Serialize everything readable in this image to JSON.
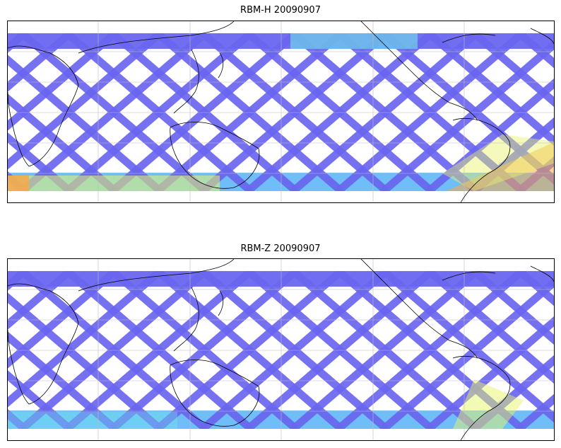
{
  "panels": [
    {
      "title": "RBM-H 20090907",
      "colormap": "jet",
      "base_swath_color": "#6a66f0",
      "hot_regions": [
        {
          "region": "southern-edge-indian-ocean",
          "color": "#f7b04a"
        },
        {
          "region": "south-atlantic-south-america",
          "color": "#f7b04a"
        },
        {
          "region": "northern-band-north-america",
          "color": "#8ef5e0"
        }
      ]
    },
    {
      "title": "RBM-Z 20090907",
      "colormap": "jet",
      "base_swath_color": "#6a66f0",
      "hot_regions": [
        {
          "region": "south-atlantic-south-america",
          "color": "#d7f57a"
        },
        {
          "region": "southern-edge",
          "color": "#6fd0f7"
        }
      ]
    }
  ],
  "colors": {
    "swath_low": "#6a66f0",
    "swath_mid": "#5fb7f7",
    "swath_cyan": "#6ff0e8",
    "swath_yellow": "#e8f56a",
    "swath_orange": "#f7a948",
    "coastline": "#000000",
    "gridline": "#bdbdbd"
  }
}
